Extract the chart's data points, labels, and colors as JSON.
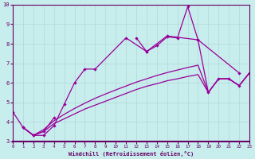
{
  "xlabel": "Windchill (Refroidissement éolien,°C)",
  "xlim": [
    0,
    23
  ],
  "ylim": [
    3,
    10
  ],
  "xticks": [
    0,
    1,
    2,
    3,
    4,
    5,
    6,
    7,
    8,
    9,
    10,
    11,
    12,
    13,
    14,
    15,
    16,
    17,
    18,
    19,
    20,
    21,
    22,
    23
  ],
  "yticks": [
    3,
    4,
    5,
    6,
    7,
    8,
    9,
    10
  ],
  "bg_color": "#c8eded",
  "line_color": "#990099",
  "grid_color": "#b0d8d8",
  "line1_x": [
    0,
    1,
    2,
    3,
    4,
    5,
    6,
    7,
    8,
    11,
    13,
    15,
    18,
    22
  ],
  "line1_y": [
    4.5,
    3.7,
    3.3,
    3.3,
    3.8,
    4.9,
    6.0,
    6.7,
    6.7,
    8.3,
    7.6,
    8.4,
    8.2,
    6.5
  ],
  "line2_x": [
    12,
    13,
    14,
    15,
    16,
    17,
    18,
    19,
    20,
    21,
    22,
    23
  ],
  "line2_y": [
    8.3,
    7.6,
    7.9,
    8.35,
    8.3,
    9.9,
    8.2,
    5.5,
    6.2,
    6.2,
    5.85,
    6.5
  ],
  "line3_x": [
    1,
    2,
    3,
    4,
    5,
    6,
    7,
    8,
    9,
    10,
    11,
    12,
    13,
    14,
    15,
    16,
    17,
    18,
    19,
    20,
    21,
    22,
    23
  ],
  "line3_y": [
    3.7,
    3.3,
    3.5,
    3.9,
    4.15,
    4.4,
    4.65,
    4.85,
    5.05,
    5.25,
    5.45,
    5.65,
    5.82,
    5.95,
    6.1,
    6.2,
    6.32,
    6.42,
    5.5,
    6.2,
    6.2,
    5.85,
    6.5
  ],
  "line4_x": [
    1,
    2,
    3,
    4,
    5,
    6,
    7,
    8,
    9,
    10,
    11,
    12,
    13,
    14,
    15,
    16,
    17,
    18,
    19,
    20,
    21,
    22,
    23
  ],
  "line4_y": [
    3.7,
    3.3,
    3.6,
    4.05,
    4.38,
    4.68,
    4.95,
    5.2,
    5.42,
    5.63,
    5.83,
    6.03,
    6.2,
    6.37,
    6.52,
    6.65,
    6.78,
    6.9,
    5.5,
    6.2,
    6.2,
    5.85,
    6.5
  ],
  "line5_x": [
    1,
    2,
    3,
    4
  ],
  "line5_y": [
    3.7,
    3.3,
    3.5,
    4.2
  ]
}
